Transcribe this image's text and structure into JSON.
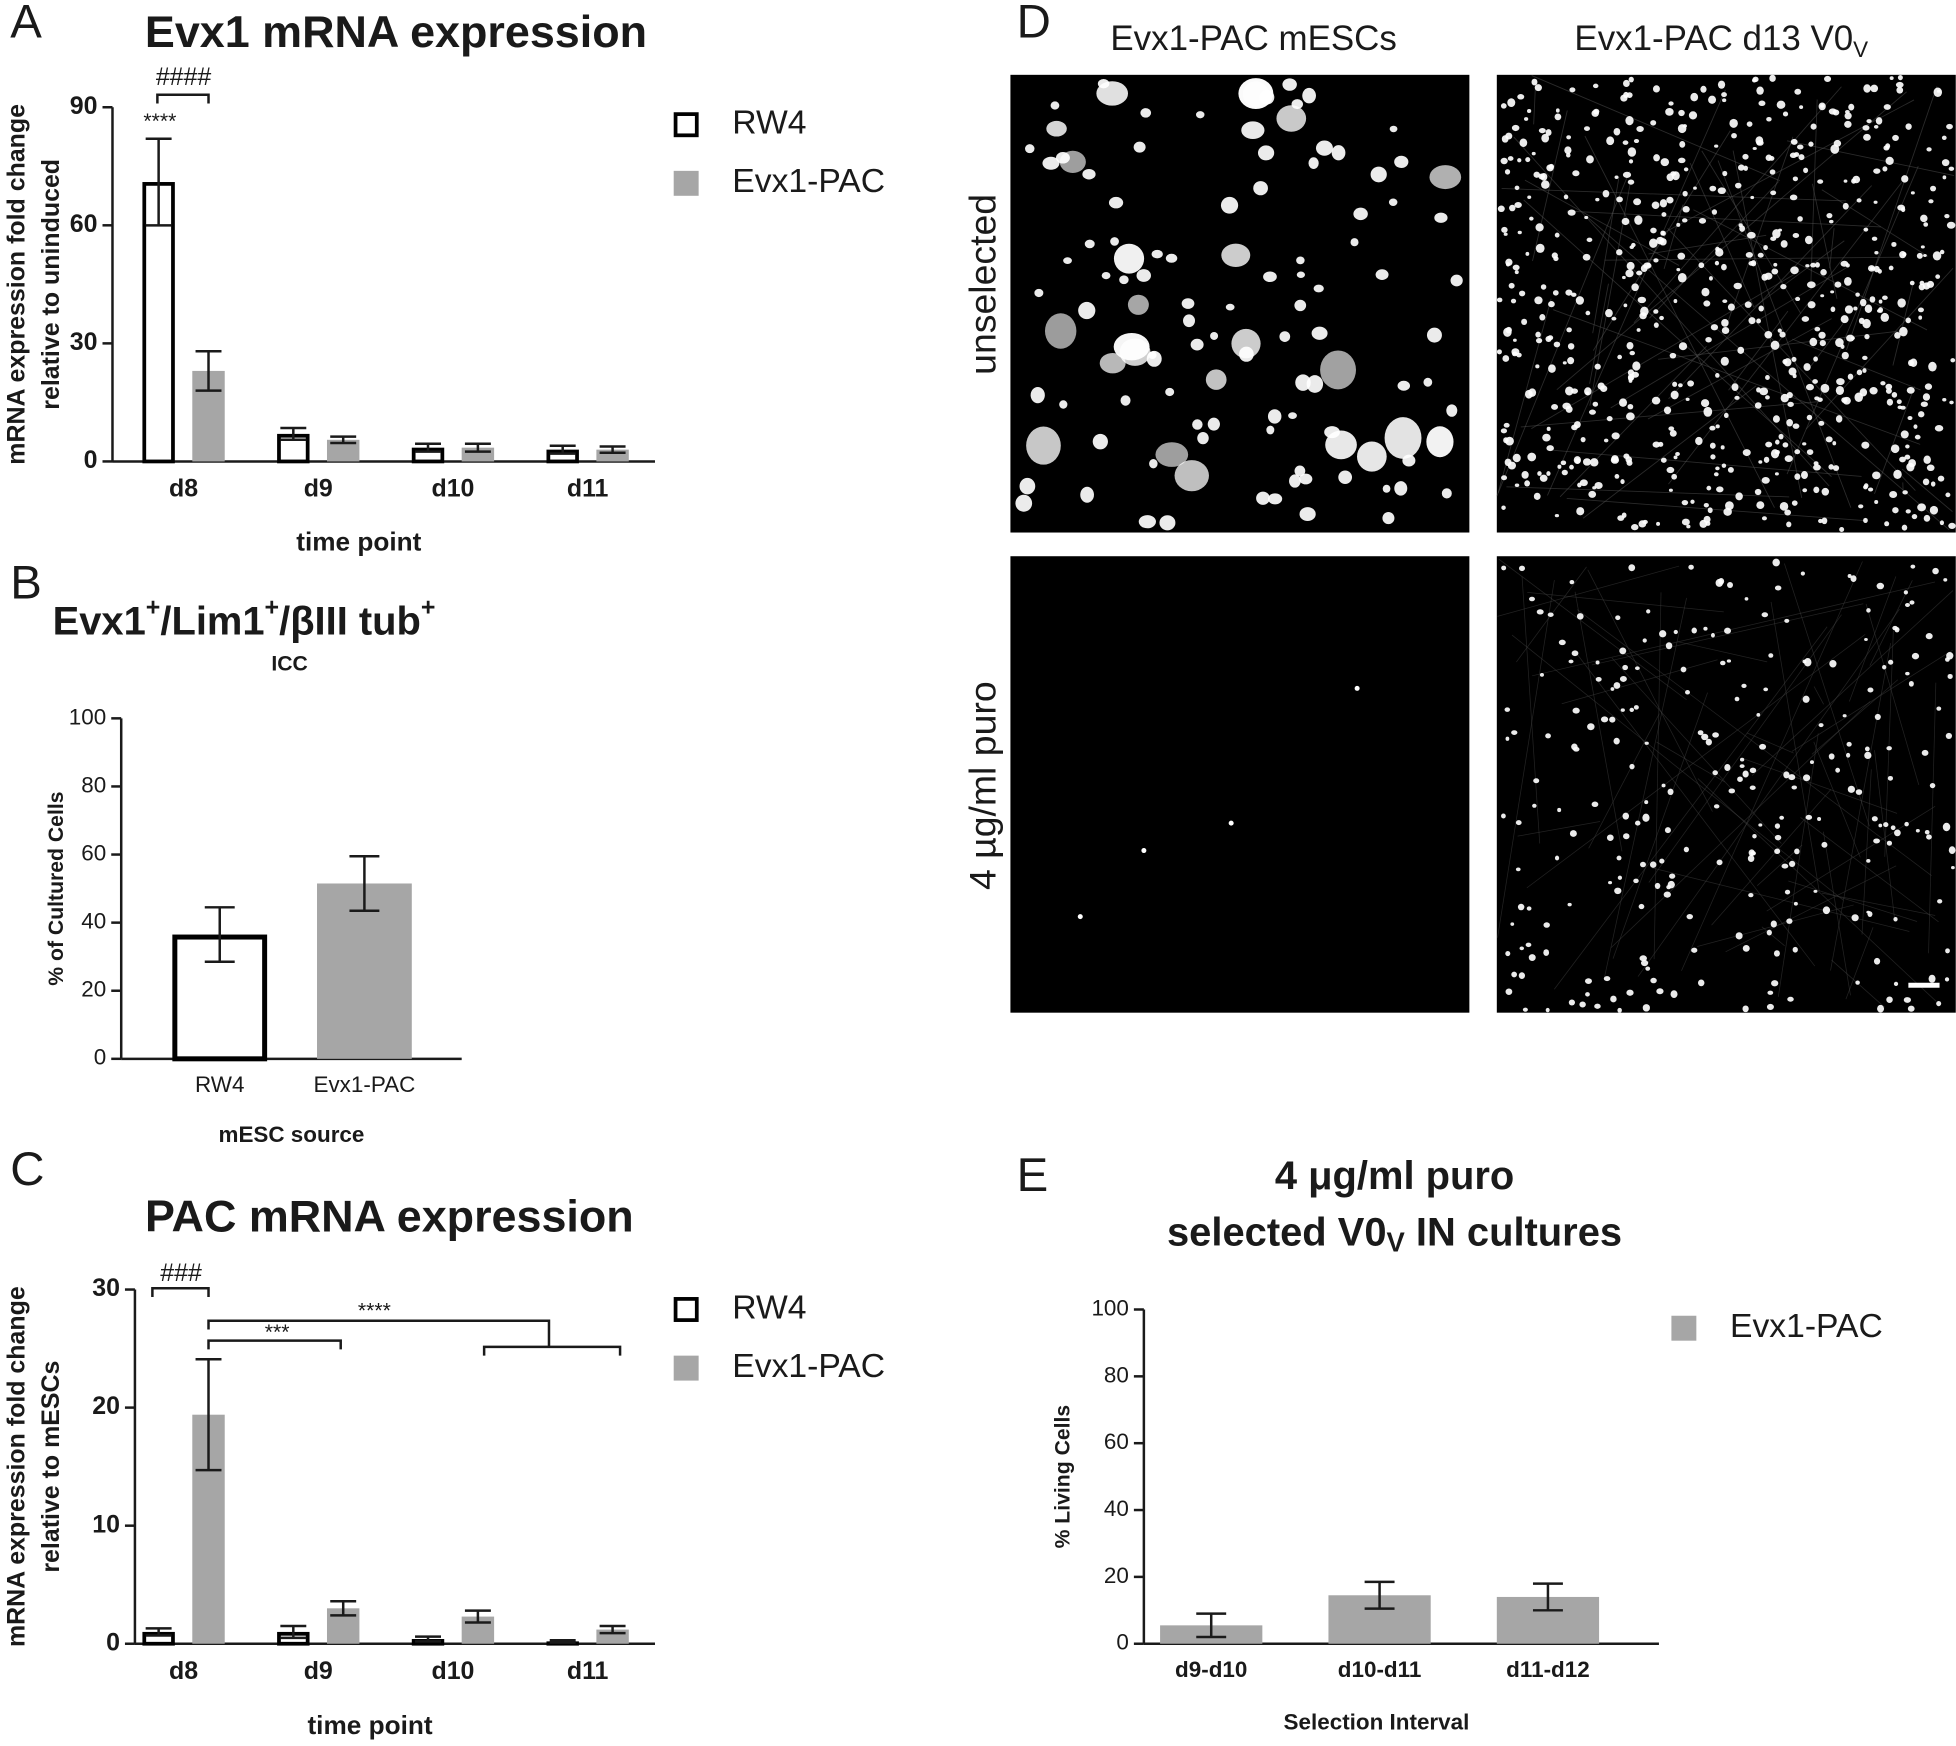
{
  "chart_data": [
    {
      "type": "bar",
      "panel_label": "A",
      "title": "Evx1 mRNA expression",
      "ylabel": [
        "mRNA expression fold change",
        "relative to uninduced"
      ],
      "xlabel": "time point",
      "categories": [
        "d8",
        "d9",
        "d10",
        "d11"
      ],
      "series": [
        {
          "name": "RW4",
          "color": "#ffffff",
          "edgecolor": "#000000",
          "values": [
            71,
            7,
            3.5,
            3
          ],
          "errors": [
            11,
            1.5,
            1,
            1
          ]
        },
        {
          "name": "Evx1-PAC",
          "color": "#a6a6a6",
          "edgecolor": "#a6a6a6",
          "values": [
            23,
            5.5,
            3.5,
            3
          ],
          "errors": [
            5,
            0.8,
            1,
            0.8
          ]
        }
      ],
      "ylim": [
        0,
        90
      ],
      "yticks": [
        0,
        30,
        60,
        90
      ],
      "annotations": [
        "****",
        "####"
      ]
    },
    {
      "type": "bar",
      "panel_label": "B",
      "title_parts": [
        "Evx1",
        "+",
        "/Lim1",
        "+",
        "/βIII tub",
        "+"
      ],
      "subtitle": "ICC",
      "ylabel": [
        "% of Cultured Cells"
      ],
      "xlabel": "mESC source",
      "categories": [
        "RW4",
        "Evx1-PAC"
      ],
      "values": [
        36.5,
        51.5
      ],
      "errors": [
        8,
        8
      ],
      "colors": [
        "#ffffff",
        "#a6a6a6"
      ],
      "edgecolors": [
        "#000000",
        "#a6a6a6"
      ],
      "ylim": [
        0,
        100
      ],
      "yticks": [
        0,
        20,
        40,
        60,
        80,
        100
      ]
    },
    {
      "type": "bar",
      "panel_label": "C",
      "title": "PAC mRNA expression",
      "ylabel": [
        "mRNA expression fold change",
        "relative to mESCs"
      ],
      "xlabel": "time point",
      "categories": [
        "d8",
        "d9",
        "d10",
        "d11"
      ],
      "series": [
        {
          "name": "RW4",
          "color": "#ffffff",
          "edgecolor": "#000000",
          "values": [
            1,
            1,
            0.4,
            0.2
          ],
          "errors": [
            0.3,
            0.5,
            0.2,
            0.1
          ]
        },
        {
          "name": "Evx1-PAC",
          "color": "#a6a6a6",
          "edgecolor": "#a6a6a6",
          "values": [
            19.4,
            3,
            2.3,
            1.2
          ],
          "errors": [
            4.7,
            0.6,
            0.5,
            0.3
          ]
        }
      ],
      "ylim": [
        0,
        30
      ],
      "yticks": [
        0,
        10,
        20,
        30
      ],
      "annotations": [
        "###",
        "***",
        "****"
      ]
    },
    {
      "type": "bar",
      "panel_label": "E",
      "title": "4 μg/ml puro",
      "title_line2_parts": [
        "selected V0",
        "V",
        " IN cultures"
      ],
      "ylabel": [
        "% Living Cells"
      ],
      "xlabel": "Selection  Interval",
      "categories": [
        "d9-d10",
        "d10-d11",
        "d11-d12"
      ],
      "series": [
        {
          "name": "Evx1-PAC",
          "color": "#a6a6a6",
          "edgecolor": "#a6a6a6",
          "values": [
            5.5,
            14.5,
            14
          ],
          "errors": [
            3.5,
            4,
            4
          ]
        }
      ],
      "ylim": [
        0,
        100
      ],
      "yticks": [
        0,
        20,
        40,
        60,
        80,
        100
      ]
    }
  ],
  "micrographs": {
    "panel_label": "D",
    "columns": [
      [
        "Evx1-PAC mESCs"
      ],
      [
        "Evx1-PAC d13 V0",
        "V"
      ]
    ],
    "rows": [
      "unselected",
      "4 µg/ml puro"
    ]
  }
}
